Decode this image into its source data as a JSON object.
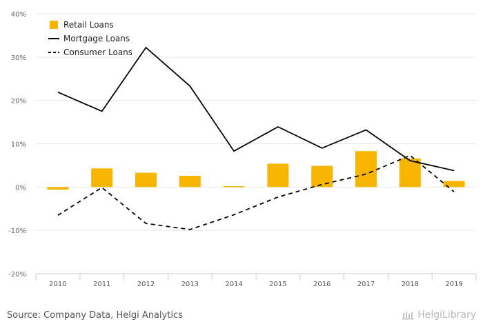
{
  "chart_data": {
    "type": "bar+line",
    "categories": [
      "2010",
      "2011",
      "2012",
      "2013",
      "2014",
      "2015",
      "2016",
      "2017",
      "2018",
      "2019"
    ],
    "series": [
      {
        "name": "Retail Loans",
        "type": "bar",
        "color": "#F7B500",
        "values": [
          -0.6,
          4.3,
          3.3,
          2.6,
          0.2,
          5.4,
          4.9,
          8.3,
          6.6,
          1.4
        ]
      },
      {
        "name": "Mortgage Loans",
        "type": "line",
        "style": "solid",
        "color": "#000000",
        "values": [
          21.9,
          17.5,
          32.2,
          23.3,
          8.3,
          13.9,
          9.0,
          13.2,
          6.1,
          3.8
        ]
      },
      {
        "name": "Consumer Loans",
        "type": "line",
        "style": "dashed",
        "color": "#000000",
        "values": [
          -6.5,
          -0.1,
          -8.4,
          -9.8,
          -6.4,
          -2.3,
          0.6,
          3.0,
          7.3,
          -1.1
        ]
      }
    ],
    "ylim": [
      -20,
      40
    ],
    "yticks": [
      "40%",
      "30%",
      "20%",
      "10%",
      "0%",
      "-10%",
      "-20%"
    ],
    "ytick_values": [
      40,
      30,
      20,
      10,
      0,
      -10,
      -20
    ],
    "grid": true,
    "legend": "top-left"
  },
  "footer": {
    "source": "Source: Company Data, Helgi Analytics",
    "brand": "HelgiLibrary"
  }
}
